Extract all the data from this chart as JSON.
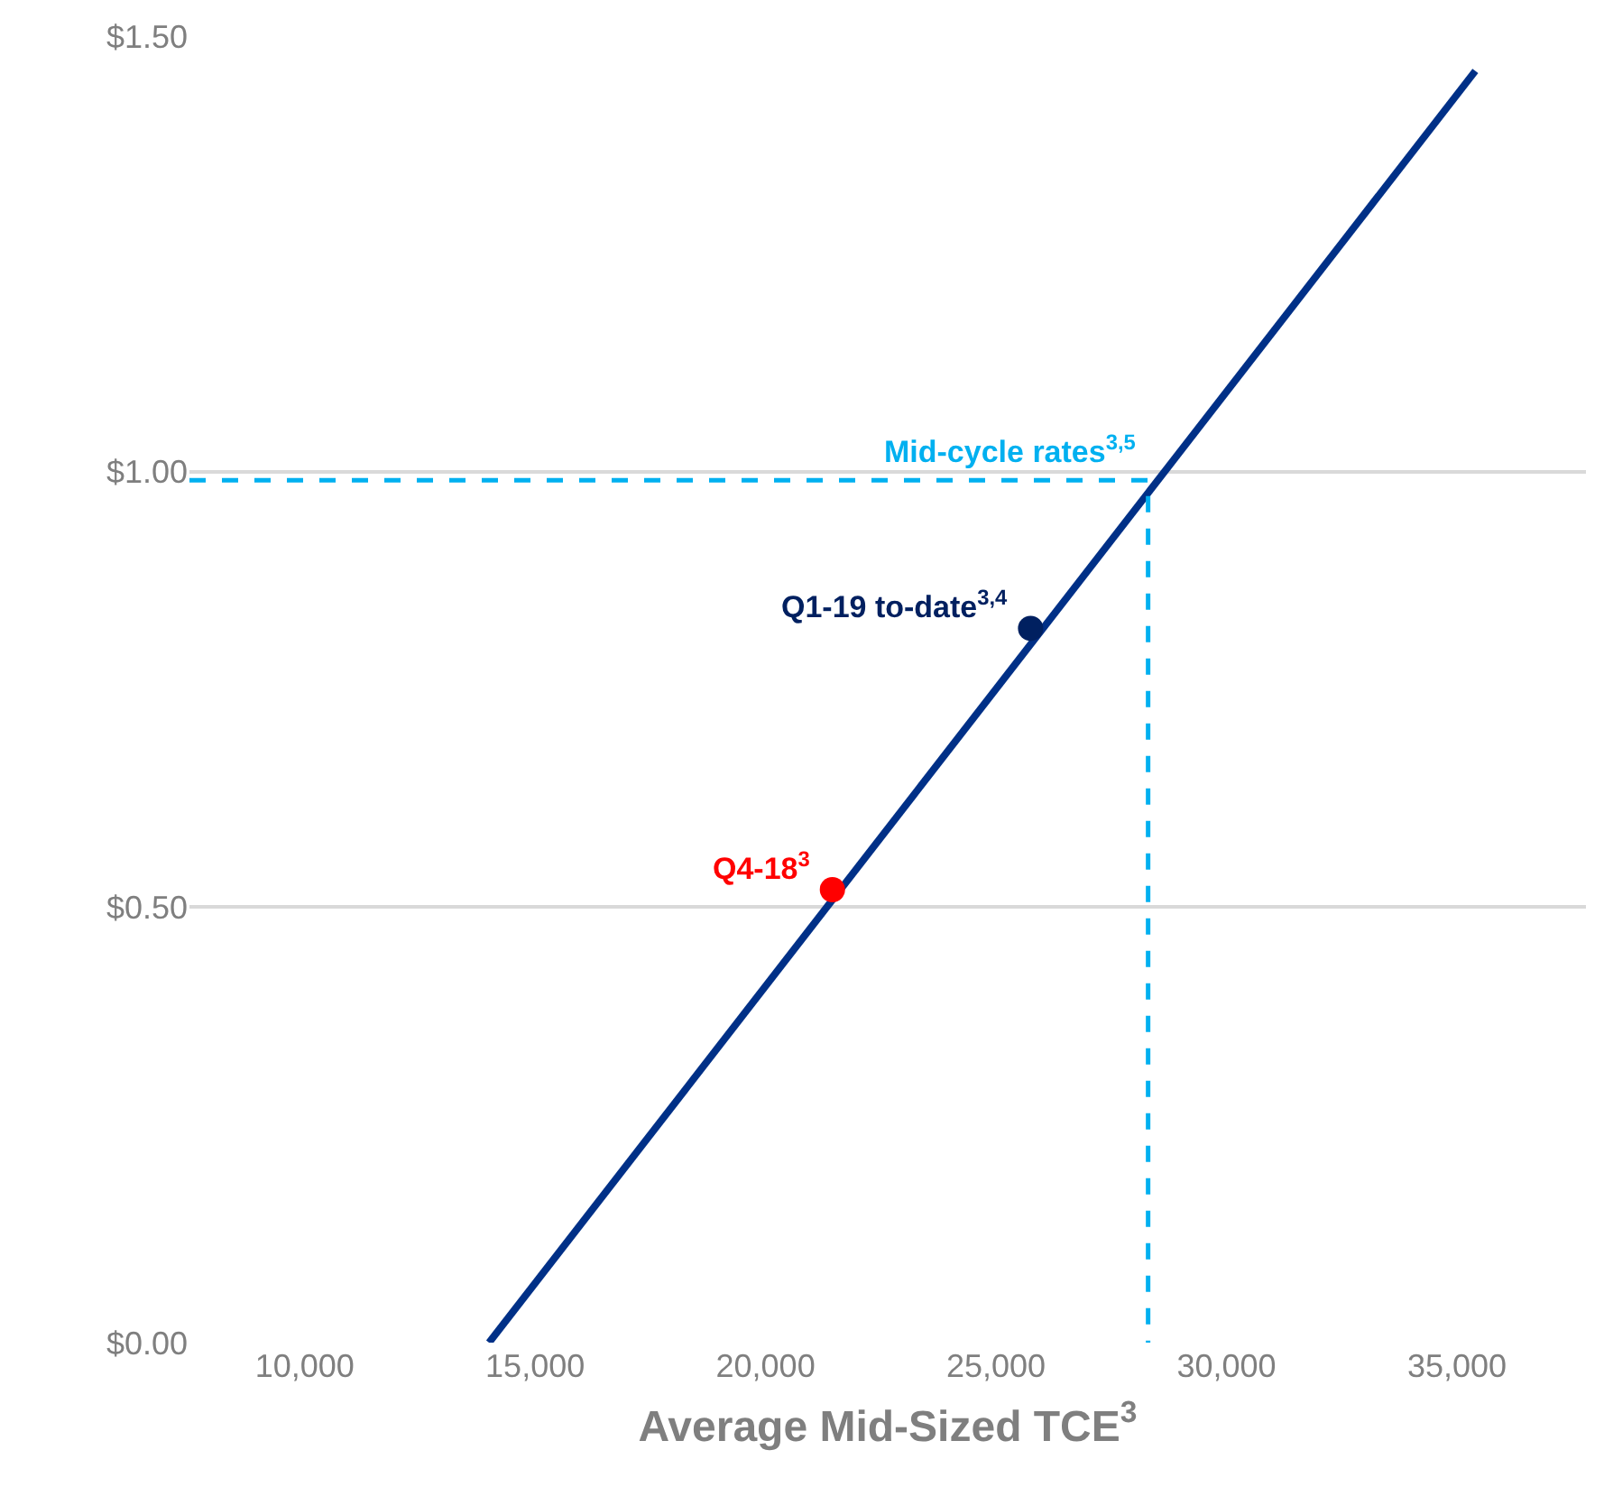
{
  "chart_data": {
    "type": "line",
    "xlabel": "Average Mid-Sized TCE$^{3}$",
    "series": [
      {
        "color": "#003087",
        "x": [
          14000,
          35400
        ],
        "values": [
          0,
          1.46
        ],
        "marker": "none",
        "line_style": "solid"
      },
      {
        "type": "line",
        "name": "Mid-cycle rates$^{3,5}$",
        "color": "#00b0f0",
        "x": [
          7500,
          28300,
          28300
        ],
        "values": [
          0.99,
          0.99,
          0
        ],
        "marker": "none",
        "line_style": "dashed"
      },
      {
        "type": "scatter",
        "name": "Q1-19 to-date$^{3,4}$",
        "color": "#002060",
        "x": [
          25750
        ],
        "values": [
          0.82
        ],
        "marker": "circle"
      },
      {
        "type": "scatter",
        "name": "Q4-18$^{3}$",
        "color": "#ff0000",
        "x": [
          21450
        ],
        "values": [
          0.52
        ],
        "marker": "circle"
      }
    ],
    "xlim": [
      7500,
      37800
    ],
    "xticks": [
      {
        "value": 10000,
        "label": "10,000"
      },
      {
        "value": 15000,
        "label": "15,000"
      },
      {
        "value": 20000,
        "label": "20,000"
      },
      {
        "value": 25000,
        "label": "25,000"
      },
      {
        "value": 30000,
        "label": "30,000"
      },
      {
        "value": 35000,
        "label": "35,000"
      }
    ],
    "ylim": [
      0,
      1.5
    ],
    "yticks": [
      {
        "value": 0,
        "label": "$0.00"
      },
      {
        "value": 0.5,
        "label": "$0.50"
      },
      {
        "value": 1.0,
        "label": "$1.00"
      },
      {
        "value": 1.5,
        "label": "$1.50"
      }
    ],
    "grid": "y"
  }
}
